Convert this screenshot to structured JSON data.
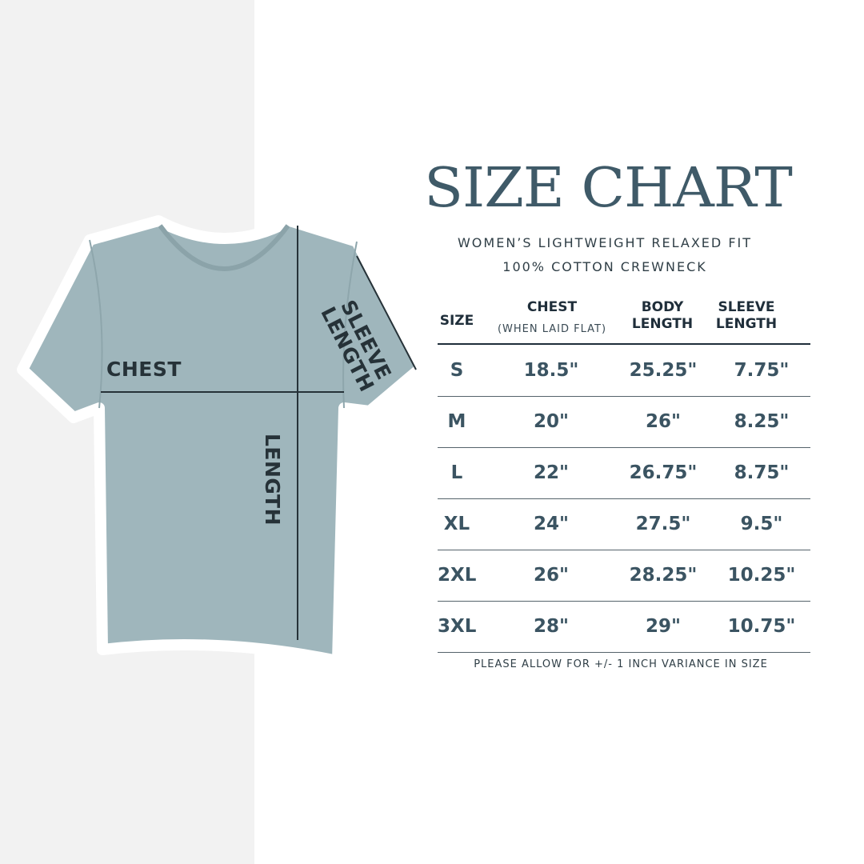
{
  "title": "SIZE CHART",
  "subtitle_line1": "WOMEN’S LIGHTWEIGHT RELAXED FIT",
  "subtitle_line2": "100% COTTON CREWNECK",
  "shirt_labels": {
    "chest": "CHEST",
    "length": "LENGTH",
    "sleeve_line1": "SLEEVE",
    "sleeve_line2": "LENGTH"
  },
  "colors": {
    "title": "#3f5a68",
    "shirt": "#9fb6bc",
    "panel": "#f2f2f2"
  },
  "table": {
    "headers": {
      "size": "SIZE",
      "chest": "CHEST",
      "chest_note": "(WHEN LAID FLAT)",
      "body_1": "BODY",
      "body_2": "LENGTH",
      "sleeve_1": "SLEEVE",
      "sleeve_2": "LENGTH"
    },
    "rows": [
      {
        "size": "S",
        "chest": "18.5\"",
        "body": "25.25\"",
        "sleeve": "7.75\""
      },
      {
        "size": "M",
        "chest": "20\"",
        "body": "26\"",
        "sleeve": "8.25\""
      },
      {
        "size": "L",
        "chest": "22\"",
        "body": "26.75\"",
        "sleeve": "8.75\""
      },
      {
        "size": "XL",
        "chest": "24\"",
        "body": "27.5\"",
        "sleeve": "9.5\""
      },
      {
        "size": "2XL",
        "chest": "26\"",
        "body": "28.25\"",
        "sleeve": "10.25\""
      },
      {
        "size": "3XL",
        "chest": "28\"",
        "body": "29\"",
        "sleeve": "10.75\""
      }
    ]
  },
  "note": "PLEASE ALLOW FOR +/- 1 INCH VARIANCE IN SIZE"
}
